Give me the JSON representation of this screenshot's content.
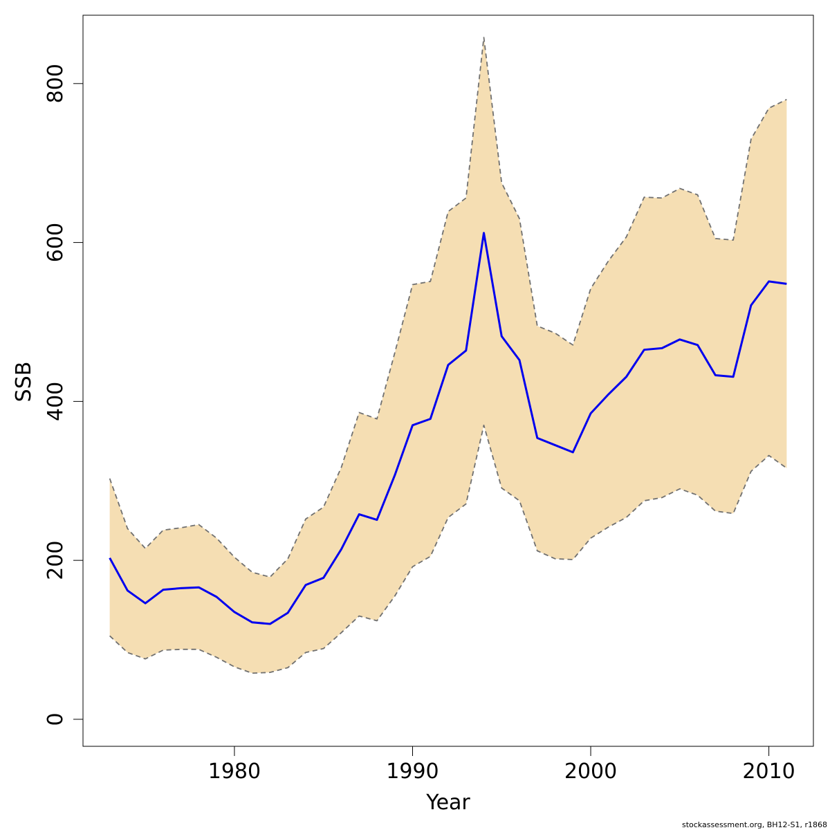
{
  "chart_data": {
    "type": "area",
    "title": "",
    "xlabel": "Year",
    "ylabel": "SSB",
    "xlim": [
      1971.5,
      2012.5
    ],
    "ylim": [
      -34,
      886
    ],
    "x_ticks": [
      1980,
      1990,
      2000,
      2010
    ],
    "y_ticks": [
      0,
      200,
      400,
      600,
      800
    ],
    "grid": false,
    "legend": "none",
    "x": [
      1973,
      1974,
      1975,
      1976,
      1977,
      1978,
      1979,
      1980,
      1981,
      1982,
      1983,
      1984,
      1985,
      1986,
      1987,
      1988,
      1989,
      1990,
      1991,
      1992,
      1993,
      1994,
      1995,
      1996,
      1997,
      1998,
      1999,
      2000,
      2001,
      2002,
      2003,
      2004,
      2005,
      2006,
      2007,
      2008,
      2009,
      2010,
      2011
    ],
    "series": [
      {
        "role": "estimate",
        "color": "#0000ee",
        "values": [
          203,
          162,
          146,
          163,
          165,
          166,
          154,
          135,
          122,
          120,
          134,
          169,
          178,
          214,
          258,
          251,
          307,
          370,
          378,
          446,
          464,
          612,
          482,
          452,
          354,
          345,
          336,
          385,
          409,
          431,
          465,
          467,
          478,
          471,
          433,
          431,
          521,
          551,
          548
        ]
      },
      {
        "role": "upper",
        "color": "#707070",
        "values": [
          303,
          240,
          215,
          238,
          241,
          245,
          228,
          204,
          185,
          179,
          202,
          252,
          267,
          317,
          386,
          378,
          461,
          547,
          551,
          639,
          656,
          858,
          675,
          630,
          495,
          486,
          471,
          542,
          577,
          607,
          657,
          656,
          668,
          660,
          605,
          603,
          730,
          769,
          780
        ]
      },
      {
        "role": "lower",
        "color": "#707070",
        "values": [
          105,
          84,
          76,
          87,
          88,
          88,
          78,
          66,
          58,
          59,
          65,
          84,
          89,
          109,
          130,
          124,
          155,
          192,
          205,
          254,
          271,
          370,
          291,
          275,
          212,
          202,
          201,
          228,
          242,
          254,
          275,
          279,
          290,
          282,
          262,
          259,
          312,
          332,
          316
        ]
      }
    ],
    "band_color": "#f5deb3"
  },
  "credit": "stockassessment.org, BH12-S1, r1868"
}
